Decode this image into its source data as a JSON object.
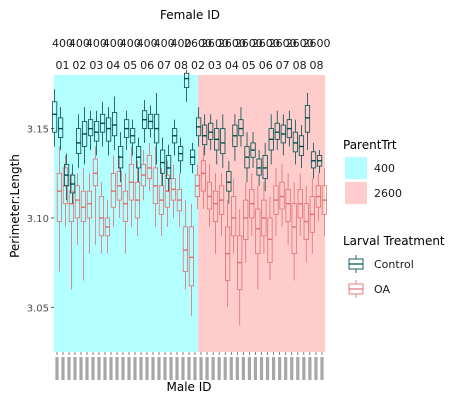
{
  "chart_data": {
    "type": "box",
    "title": "Female ID",
    "xlabel": "Male ID",
    "ylabel": "Perimeter:Length",
    "ylim": [
      3.025,
      3.18
    ],
    "y_ticks": [
      3.05,
      3.1,
      3.15
    ],
    "y_tick_labels": [
      "3.05",
      "3.10",
      "3.15"
    ],
    "grid": false,
    "facet_strip_top_row": [
      "400",
      "400",
      "400",
      "400",
      "400",
      "400",
      "400",
      "400",
      "2600",
      "2600",
      "2600",
      "2600",
      "2600",
      "2600",
      "2600",
      "2600"
    ],
    "facet_strip_bottom_row": [
      "01",
      "02",
      "03",
      "04",
      "05",
      "06",
      "07",
      "08",
      "02",
      "03",
      "04",
      "05",
      "06",
      "07",
      "08",
      "08"
    ],
    "facet_labels_clipped": true,
    "x_tick_labels_illegible": true,
    "groups": [
      {
        "parent_trt": "400",
        "color": "#b3ffff",
        "n_pairs": 24
      },
      {
        "parent_trt": "2600",
        "color": "#ffcccc",
        "n_pairs": 21
      }
    ],
    "legends": [
      {
        "title": "ParentTrt",
        "placement": "right",
        "entries": [
          {
            "label": "400",
            "color": "#b3ffff"
          },
          {
            "label": "2600",
            "color": "#ffcccc"
          }
        ]
      },
      {
        "title": "Larval Treatment",
        "placement": "right",
        "entries": [
          {
            "label": "Control",
            "color": "#004d4d"
          },
          {
            "label": "OA",
            "color": "#e07070"
          }
        ]
      }
    ],
    "series": [
      {
        "name": "Control",
        "color": "#004d4d",
        "values": [
          [
            3.14,
            3.148,
            3.158,
            3.165,
            3.172
          ],
          [
            3.138,
            3.145,
            3.15,
            3.156,
            3.162
          ],
          [
            3.11,
            3.118,
            3.124,
            3.13,
            3.136
          ],
          [
            3.108,
            3.114,
            3.119,
            3.124,
            3.13
          ],
          [
            3.128,
            3.136,
            3.142,
            3.15,
            3.158
          ],
          [
            3.13,
            3.14,
            3.147,
            3.154,
            3.162
          ],
          [
            3.138,
            3.146,
            3.15,
            3.155,
            3.16
          ],
          [
            3.135,
            3.143,
            3.148,
            3.154,
            3.16
          ],
          [
            3.14,
            3.148,
            3.153,
            3.158,
            3.165
          ],
          [
            3.135,
            3.143,
            3.15,
            3.156,
            3.162
          ],
          [
            3.138,
            3.146,
            3.152,
            3.159,
            3.168
          ],
          [
            3.12,
            3.128,
            3.134,
            3.14,
            3.148
          ],
          [
            3.138,
            3.145,
            3.15,
            3.155,
            3.16
          ],
          [
            3.135,
            3.142,
            3.146,
            3.15,
            3.155
          ],
          [
            3.12,
            3.128,
            3.134,
            3.14,
            3.145
          ],
          [
            3.142,
            3.15,
            3.155,
            3.16,
            3.166
          ],
          [
            3.145,
            3.15,
            3.154,
            3.158,
            3.163
          ],
          [
            3.13,
            3.142,
            3.15,
            3.158,
            3.17
          ],
          [
            3.118,
            3.125,
            3.131,
            3.138,
            3.145
          ],
          [
            3.115,
            3.122,
            3.128,
            3.135,
            3.141
          ],
          [
            3.135,
            3.142,
            3.146,
            3.15,
            3.155
          ],
          [
            3.125,
            3.132,
            3.136,
            3.14,
            3.145
          ],
          [
            3.165,
            3.173,
            3.178,
            3.181,
            3.183
          ],
          [
            3.125,
            3.13,
            3.134,
            3.138,
            3.142
          ],
          [
            3.14,
            3.146,
            3.151,
            3.156,
            3.162
          ],
          [
            3.135,
            3.141,
            3.146,
            3.152,
            3.158
          ],
          [
            3.138,
            3.144,
            3.148,
            3.153,
            3.158
          ],
          [
            3.13,
            3.138,
            3.144,
            3.15,
            3.155
          ],
          [
            3.128,
            3.136,
            3.142,
            3.15,
            3.158
          ],
          [
            3.108,
            3.115,
            3.12,
            3.126,
            3.132
          ],
          [
            3.132,
            3.14,
            3.146,
            3.152,
            3.158
          ],
          [
            3.14,
            3.146,
            3.15,
            3.155,
            3.162
          ],
          [
            3.12,
            3.128,
            3.134,
            3.14,
            3.148
          ],
          [
            3.128,
            3.134,
            3.138,
            3.142,
            3.148
          ],
          [
            3.118,
            3.124,
            3.128,
            3.133,
            3.138
          ],
          [
            3.115,
            3.122,
            3.128,
            3.135,
            3.142
          ],
          [
            3.13,
            3.138,
            3.144,
            3.15,
            3.158
          ],
          [
            3.138,
            3.144,
            3.148,
            3.153,
            3.16
          ],
          [
            3.135,
            3.142,
            3.147,
            3.152,
            3.158
          ],
          [
            3.14,
            3.145,
            3.15,
            3.155,
            3.16
          ],
          [
            3.13,
            3.137,
            3.142,
            3.148,
            3.155
          ],
          [
            3.128,
            3.135,
            3.14,
            3.146,
            3.152
          ],
          [
            3.138,
            3.148,
            3.156,
            3.163,
            3.17
          ],
          [
            3.122,
            3.128,
            3.132,
            3.137,
            3.142
          ],
          [
            3.125,
            3.129,
            3.132,
            3.135,
            3.138
          ]
        ]
      },
      {
        "name": "OA",
        "color": "#e07070",
        "values": [
          [
            3.07,
            3.098,
            3.115,
            3.125,
            3.14
          ],
          [
            3.095,
            3.108,
            3.118,
            3.128,
            3.135
          ],
          [
            3.06,
            3.098,
            3.108,
            3.115,
            3.125
          ],
          [
            3.085,
            3.1,
            3.11,
            3.118,
            3.125
          ],
          [
            3.065,
            3.098,
            3.106,
            3.115,
            3.128
          ],
          [
            3.08,
            3.1,
            3.108,
            3.115,
            3.125
          ],
          [
            3.085,
            3.118,
            3.125,
            3.133,
            3.14
          ],
          [
            3.08,
            3.09,
            3.1,
            3.112,
            3.12
          ],
          [
            3.08,
            3.09,
            3.095,
            3.1,
            3.11
          ],
          [
            3.095,
            3.106,
            3.115,
            3.125,
            3.135
          ],
          [
            3.1,
            3.11,
            3.118,
            3.126,
            3.135
          ],
          [
            3.08,
            3.098,
            3.108,
            3.115,
            3.125
          ],
          [
            3.095,
            3.11,
            3.12,
            3.13,
            3.14
          ],
          [
            3.09,
            3.1,
            3.11,
            3.12,
            3.132
          ],
          [
            3.11,
            3.118,
            3.124,
            3.13,
            3.138
          ],
          [
            3.115,
            3.122,
            3.128,
            3.135,
            3.142
          ],
          [
            3.095,
            3.108,
            3.118,
            3.128,
            3.14
          ],
          [
            3.09,
            3.102,
            3.11,
            3.118,
            3.128
          ],
          [
            3.095,
            3.106,
            3.115,
            3.124,
            3.132
          ],
          [
            3.1,
            3.11,
            3.116,
            3.122,
            3.13
          ],
          [
            3.095,
            3.104,
            3.11,
            3.116,
            3.125
          ],
          [
            3.06,
            3.07,
            3.082,
            3.095,
            3.11
          ],
          [
            3.045,
            3.062,
            3.078,
            3.095,
            3.108
          ],
          [
            3.105,
            3.112,
            3.118,
            3.124,
            3.13
          ],
          [
            3.105,
            3.115,
            3.125,
            3.132,
            3.14
          ],
          [
            3.095,
            3.105,
            3.112,
            3.12,
            3.13
          ],
          [
            3.08,
            3.098,
            3.108,
            3.115,
            3.125
          ],
          [
            3.09,
            3.102,
            3.11,
            3.118,
            3.125
          ],
          [
            3.05,
            3.065,
            3.08,
            3.095,
            3.11
          ],
          [
            3.08,
            3.09,
            3.1,
            3.112,
            3.122
          ],
          [
            3.04,
            3.06,
            3.075,
            3.09,
            3.105
          ],
          [
            3.075,
            3.088,
            3.1,
            3.11,
            3.12
          ],
          [
            3.09,
            3.1,
            3.108,
            3.116,
            3.125
          ],
          [
            3.06,
            3.08,
            3.094,
            3.105,
            3.118
          ],
          [
            3.08,
            3.09,
            3.1,
            3.11,
            3.12
          ],
          [
            3.065,
            3.075,
            3.088,
            3.1,
            3.112
          ],
          [
            3.09,
            3.102,
            3.11,
            3.118,
            3.128
          ],
          [
            3.095,
            3.105,
            3.112,
            3.12,
            3.13
          ],
          [
            3.085,
            3.098,
            3.108,
            3.116,
            3.125
          ],
          [
            3.065,
            3.08,
            3.095,
            3.108,
            3.12
          ],
          [
            3.09,
            3.1,
            3.108,
            3.116,
            3.125
          ],
          [
            3.075,
            3.088,
            3.098,
            3.108,
            3.118
          ],
          [
            3.08,
            3.092,
            3.102,
            3.112,
            3.122
          ],
          [
            3.098,
            3.106,
            3.112,
            3.118,
            3.125
          ],
          [
            3.09,
            3.102,
            3.11,
            3.118,
            3.128
          ]
        ]
      }
    ]
  }
}
